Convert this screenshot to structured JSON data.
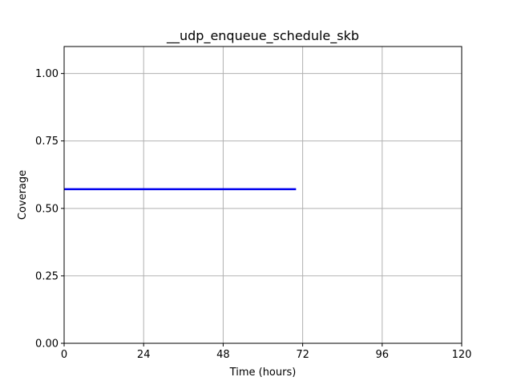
{
  "chart_data": {
    "type": "line",
    "title": "__udp_enqueue_schedule_skb",
    "xlabel": "Time (hours)",
    "ylabel": "Coverage",
    "xlim": [
      0,
      120
    ],
    "ylim": [
      0,
      1.1
    ],
    "xticks": [
      0,
      24,
      48,
      72,
      96,
      120
    ],
    "xtick_labels": [
      "0",
      "24",
      "48",
      "72",
      "96",
      "120"
    ],
    "yticks": [
      0,
      0.25,
      0.5,
      0.75,
      1.0
    ],
    "ytick_labels": [
      "0.00",
      "0.25",
      "0.50",
      "0.75",
      "1.00"
    ],
    "grid": true,
    "series": [
      {
        "color": "#0000ee",
        "x": [
          0,
          70
        ],
        "y": [
          0.571,
          0.571
        ]
      }
    ]
  },
  "colors": {
    "grid": "#b0b0b0",
    "axis": "#000000"
  }
}
